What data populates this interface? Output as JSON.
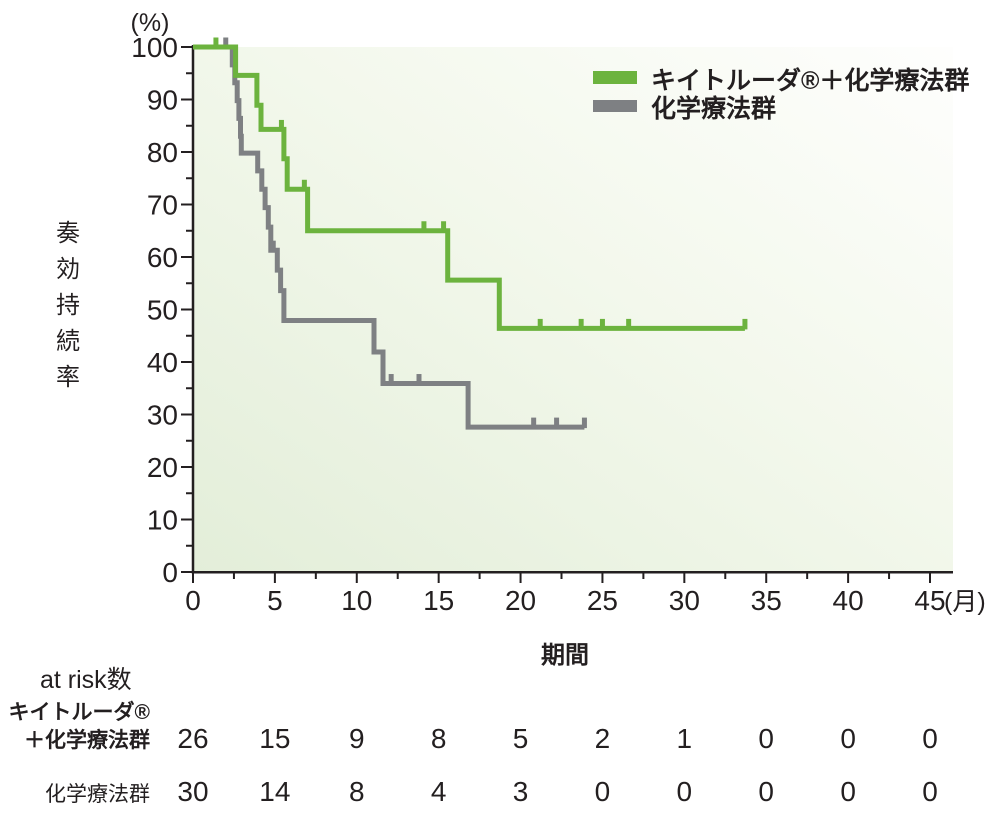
{
  "colors": {
    "green": "#6cb33e",
    "gray": "#7e8083",
    "at_risk_gray": "#8a8c8d",
    "axis_black": "#231f20",
    "plot_bg_light": "#fdfefb",
    "plot_bg_green": "#e4efda"
  },
  "chart_data": {
    "type": "km_step",
    "title": "",
    "ylabel": "奏効持続率",
    "y_unit": "(%)",
    "xlabel": "期間",
    "x_unit": "(月)",
    "xlim": [
      0,
      45
    ],
    "ylim": [
      0,
      100
    ],
    "x_major_ticks": [
      0,
      5,
      10,
      15,
      20,
      25,
      30,
      35,
      40,
      45
    ],
    "x_minor_step": 2.5,
    "y_major_ticks": [
      0,
      10,
      20,
      30,
      40,
      50,
      60,
      70,
      80,
      90,
      100
    ],
    "y_minor_step": 5,
    "grid": false,
    "legend_position": "top-right-inside",
    "series": [
      {
        "name": "キイトルーダ®＋化学療法群",
        "color_key": "green",
        "steps": [
          [
            0,
            100
          ],
          [
            2.6,
            94.6
          ],
          [
            3.9,
            88.9
          ],
          [
            4.15,
            84.3
          ],
          [
            5.55,
            78.7
          ],
          [
            5.75,
            72.9
          ],
          [
            7.0,
            65.0
          ],
          [
            15.55,
            55.6
          ],
          [
            18.7,
            46.4
          ]
        ],
        "end": 33.7,
        "censors": [
          [
            1.4,
            100
          ],
          [
            5.4,
            84.3
          ],
          [
            6.8,
            72.9
          ],
          [
            14.1,
            65.0
          ],
          [
            15.3,
            65.0
          ],
          [
            21.2,
            46.4
          ],
          [
            23.7,
            46.4
          ],
          [
            25.0,
            46.4
          ],
          [
            26.6,
            46.4
          ],
          [
            33.7,
            46.4
          ]
        ]
      },
      {
        "name": "化学療法群",
        "color_key": "gray",
        "steps": [
          [
            0,
            100
          ],
          [
            2.4,
            96.6
          ],
          [
            2.55,
            93.2
          ],
          [
            2.7,
            89.8
          ],
          [
            2.8,
            86.4
          ],
          [
            2.9,
            83.0
          ],
          [
            2.95,
            79.8
          ],
          [
            3.95,
            76.4
          ],
          [
            4.2,
            72.9
          ],
          [
            4.4,
            69.4
          ],
          [
            4.6,
            65.7
          ],
          [
            4.75,
            61.3
          ],
          [
            5.15,
            57.5
          ],
          [
            5.35,
            53.6
          ],
          [
            5.55,
            47.9
          ],
          [
            11.05,
            41.9
          ],
          [
            11.6,
            35.9
          ],
          [
            16.8,
            27.6
          ]
        ],
        "end": 23.9,
        "censors": [
          [
            2.0,
            100
          ],
          [
            4.9,
            61.3
          ],
          [
            12.1,
            35.9
          ],
          [
            13.8,
            35.9
          ],
          [
            20.8,
            27.6
          ],
          [
            22.2,
            27.6
          ],
          [
            23.9,
            27.6
          ]
        ]
      }
    ]
  },
  "at_risk": {
    "title": "at risk数",
    "times": [
      0,
      5,
      10,
      15,
      20,
      25,
      30,
      35,
      40,
      45
    ],
    "rows": [
      {
        "label_lines": [
          "キイトルーダ®",
          "＋化学療法群"
        ],
        "color_key": "green",
        "bold": true,
        "values": [
          26,
          15,
          9,
          8,
          5,
          2,
          1,
          0,
          0,
          0
        ]
      },
      {
        "label_lines": [
          "化学療法群"
        ],
        "color_key": "at_risk_gray",
        "bold": false,
        "values": [
          30,
          14,
          8,
          4,
          3,
          0,
          0,
          0,
          0,
          0
        ]
      }
    ]
  }
}
